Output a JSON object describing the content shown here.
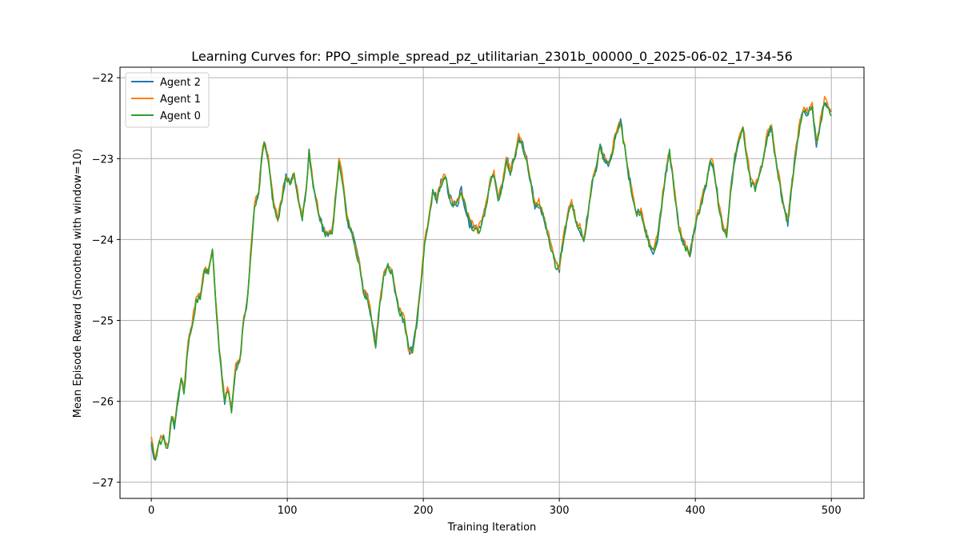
{
  "chart_data": {
    "type": "line",
    "title": "Learning Curves for: PPO_simple_spread_pz_utilitarian_2301b_00000_0_2025-06-02_17-34-56",
    "xlabel": "Training Iteration",
    "ylabel": "Mean Episode Reward (Smoothed with window=10)",
    "xlim": [
      -23,
      524
    ],
    "ylim": [
      -27.2,
      -21.87
    ],
    "xticks": [
      0,
      100,
      200,
      300,
      400,
      500
    ],
    "yticks": [
      -27,
      -26,
      -25,
      -24,
      -23,
      -22
    ],
    "xtick_labels": [
      "0",
      "100",
      "200",
      "300",
      "400",
      "500"
    ],
    "ytick_labels": [
      "−27",
      "−26",
      "−25",
      "−24",
      "−23",
      "−22"
    ],
    "grid": true,
    "legend_position": "top-left",
    "keypoints": [
      [
        0,
        -26.5
      ],
      [
        3,
        -26.75
      ],
      [
        6,
        -26.5
      ],
      [
        9,
        -26.45
      ],
      [
        12,
        -26.6
      ],
      [
        15,
        -26.2
      ],
      [
        17,
        -26.3
      ],
      [
        19,
        -26.05
      ],
      [
        22,
        -25.7
      ],
      [
        24,
        -25.9
      ],
      [
        27,
        -25.3
      ],
      [
        30,
        -25.05
      ],
      [
        33,
        -24.75
      ],
      [
        36,
        -24.7
      ],
      [
        39,
        -24.35
      ],
      [
        42,
        -24.4
      ],
      [
        45,
        -24.15
      ],
      [
        48,
        -24.9
      ],
      [
        50,
        -25.35
      ],
      [
        52,
        -25.7
      ],
      [
        54,
        -26.0
      ],
      [
        56,
        -25.85
      ],
      [
        59,
        -26.1
      ],
      [
        62,
        -25.6
      ],
      [
        65,
        -25.5
      ],
      [
        68,
        -25.0
      ],
      [
        71,
        -24.7
      ],
      [
        73,
        -24.2
      ],
      [
        76,
        -23.55
      ],
      [
        79,
        -23.45
      ],
      [
        81,
        -23.0
      ],
      [
        83,
        -22.8
      ],
      [
        86,
        -23.0
      ],
      [
        88,
        -23.3
      ],
      [
        90,
        -23.6
      ],
      [
        93,
        -23.75
      ],
      [
        96,
        -23.5
      ],
      [
        99,
        -23.2
      ],
      [
        102,
        -23.3
      ],
      [
        105,
        -23.2
      ],
      [
        108,
        -23.5
      ],
      [
        111,
        -23.75
      ],
      [
        114,
        -23.4
      ],
      [
        116,
        -22.9
      ],
      [
        118,
        -23.2
      ],
      [
        121,
        -23.5
      ],
      [
        124,
        -23.75
      ],
      [
        127,
        -23.9
      ],
      [
        130,
        -23.95
      ],
      [
        133,
        -23.9
      ],
      [
        136,
        -23.4
      ],
      [
        138,
        -23.0
      ],
      [
        141,
        -23.3
      ],
      [
        144,
        -23.75
      ],
      [
        147,
        -23.9
      ],
      [
        150,
        -24.1
      ],
      [
        153,
        -24.3
      ],
      [
        156,
        -24.65
      ],
      [
        159,
        -24.7
      ],
      [
        162,
        -25.0
      ],
      [
        165,
        -25.3
      ],
      [
        168,
        -24.8
      ],
      [
        171,
        -24.45
      ],
      [
        174,
        -24.3
      ],
      [
        177,
        -24.4
      ],
      [
        180,
        -24.7
      ],
      [
        183,
        -24.9
      ],
      [
        186,
        -25.0
      ],
      [
        189,
        -25.35
      ],
      [
        192,
        -25.4
      ],
      [
        195,
        -25.05
      ],
      [
        198,
        -24.6
      ],
      [
        201,
        -24.0
      ],
      [
        204,
        -23.75
      ],
      [
        207,
        -23.4
      ],
      [
        210,
        -23.5
      ],
      [
        213,
        -23.3
      ],
      [
        216,
        -23.2
      ],
      [
        219,
        -23.45
      ],
      [
        222,
        -23.6
      ],
      [
        225,
        -23.55
      ],
      [
        228,
        -23.4
      ],
      [
        231,
        -23.6
      ],
      [
        234,
        -23.8
      ],
      [
        237,
        -23.85
      ],
      [
        240,
        -23.9
      ],
      [
        243,
        -23.8
      ],
      [
        246,
        -23.6
      ],
      [
        249,
        -23.3
      ],
      [
        252,
        -23.2
      ],
      [
        255,
        -23.5
      ],
      [
        258,
        -23.35
      ],
      [
        261,
        -23.0
      ],
      [
        264,
        -23.15
      ],
      [
        267,
        -23.0
      ],
      [
        270,
        -22.75
      ],
      [
        273,
        -22.85
      ],
      [
        276,
        -23.0
      ],
      [
        279,
        -23.3
      ],
      [
        282,
        -23.6
      ],
      [
        285,
        -23.55
      ],
      [
        288,
        -23.7
      ],
      [
        291,
        -23.9
      ],
      [
        294,
        -24.1
      ],
      [
        297,
        -24.3
      ],
      [
        300,
        -24.35
      ],
      [
        303,
        -24.0
      ],
      [
        306,
        -23.7
      ],
      [
        309,
        -23.55
      ],
      [
        312,
        -23.75
      ],
      [
        315,
        -23.85
      ],
      [
        318,
        -24.0
      ],
      [
        321,
        -23.7
      ],
      [
        324,
        -23.3
      ],
      [
        327,
        -23.1
      ],
      [
        330,
        -22.85
      ],
      [
        333,
        -23.0
      ],
      [
        336,
        -23.05
      ],
      [
        339,
        -22.9
      ],
      [
        342,
        -22.65
      ],
      [
        345,
        -22.55
      ],
      [
        348,
        -22.85
      ],
      [
        351,
        -23.2
      ],
      [
        354,
        -23.5
      ],
      [
        357,
        -23.7
      ],
      [
        360,
        -23.65
      ],
      [
        363,
        -23.85
      ],
      [
        366,
        -24.05
      ],
      [
        369,
        -24.15
      ],
      [
        372,
        -24.0
      ],
      [
        375,
        -23.6
      ],
      [
        378,
        -23.2
      ],
      [
        381,
        -22.9
      ],
      [
        384,
        -23.3
      ],
      [
        387,
        -23.75
      ],
      [
        390,
        -24.0
      ],
      [
        393,
        -24.1
      ],
      [
        396,
        -24.2
      ],
      [
        399,
        -23.9
      ],
      [
        402,
        -23.7
      ],
      [
        405,
        -23.5
      ],
      [
        408,
        -23.3
      ],
      [
        411,
        -23.0
      ],
      [
        414,
        -23.15
      ],
      [
        417,
        -23.55
      ],
      [
        420,
        -23.85
      ],
      [
        423,
        -23.95
      ],
      [
        426,
        -23.4
      ],
      [
        429,
        -23.0
      ],
      [
        432,
        -22.75
      ],
      [
        435,
        -22.6
      ],
      [
        438,
        -23.0
      ],
      [
        441,
        -23.3
      ],
      [
        444,
        -23.35
      ],
      [
        447,
        -23.2
      ],
      [
        450,
        -23.0
      ],
      [
        453,
        -22.7
      ],
      [
        456,
        -22.6
      ],
      [
        459,
        -23.0
      ],
      [
        462,
        -23.3
      ],
      [
        465,
        -23.6
      ],
      [
        468,
        -23.8
      ],
      [
        471,
        -23.3
      ],
      [
        474,
        -22.9
      ],
      [
        477,
        -22.55
      ],
      [
        480,
        -22.4
      ],
      [
        483,
        -22.45
      ],
      [
        486,
        -22.35
      ],
      [
        489,
        -22.8
      ],
      [
        492,
        -22.55
      ],
      [
        495,
        -22.3
      ],
      [
        498,
        -22.35
      ],
      [
        500,
        -22.45
      ]
    ],
    "series": [
      {
        "name": "Agent 2",
        "color": "#1f77b4",
        "offset": 0.0
      },
      {
        "name": "Agent 1",
        "color": "#ff7f0e",
        "offset": 0.02
      },
      {
        "name": "Agent 0",
        "color": "#2ca02c",
        "offset": -0.01
      }
    ]
  }
}
